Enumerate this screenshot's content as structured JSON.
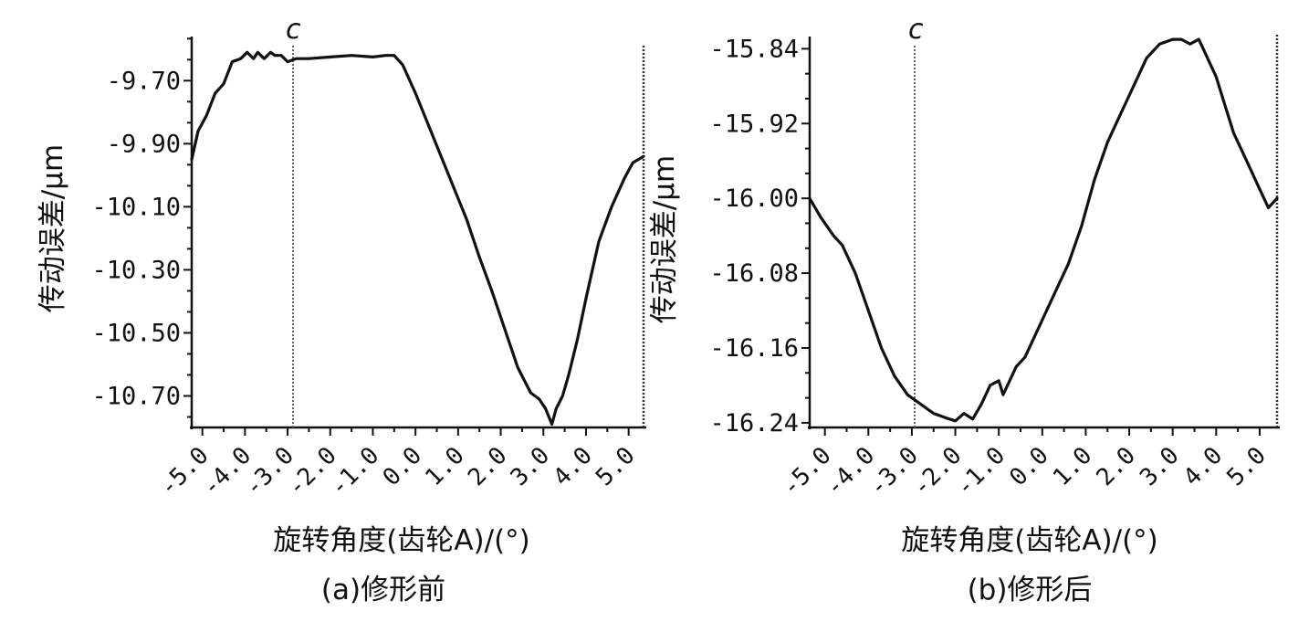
{
  "chart_data": [
    {
      "type": "line",
      "caption": "(a)修形前",
      "xlabel": "旋转角度(齿轮A)/(°)",
      "ylabel": "传动误差/μm",
      "marker_label": "c",
      "marker_x": -3.0,
      "xlim": [
        -5.25,
        5.35
      ],
      "ylim": [
        -10.8,
        -9.56
      ],
      "xticks": [
        "-5.0",
        "-4.0",
        "-3.0",
        "-2.0",
        "-1.0",
        "0.0",
        "1.0",
        "2.0",
        "3.0",
        "4.0",
        "5.0"
      ],
      "xtick_values": [
        -5,
        -4,
        -3,
        -2,
        -1,
        0,
        1,
        2,
        3,
        4,
        5
      ],
      "yticks": [
        "-9.70",
        "-9.90",
        "-10.10",
        "-10.30",
        "-10.50",
        "-10.70"
      ],
      "ytick_values": [
        -9.7,
        -9.9,
        -10.1,
        -10.3,
        -10.5,
        -10.7
      ],
      "x": [
        -5.25,
        -5.1,
        -4.9,
        -4.7,
        -4.5,
        -4.3,
        -4.1,
        -3.95,
        -3.8,
        -3.7,
        -3.55,
        -3.4,
        -3.3,
        -3.15,
        -3.0,
        -2.8,
        -2.5,
        -2.0,
        -1.5,
        -1.0,
        -0.7,
        -0.5,
        -0.3,
        0.0,
        0.3,
        0.6,
        0.9,
        1.2,
        1.5,
        1.8,
        2.1,
        2.4,
        2.7,
        2.9,
        3.05,
        3.2,
        3.3,
        3.45,
        3.6,
        3.8,
        4.0,
        4.3,
        4.6,
        4.9,
        5.1,
        5.35
      ],
      "values": [
        -9.95,
        -9.86,
        -9.81,
        -9.74,
        -9.71,
        -9.64,
        -9.63,
        -9.61,
        -9.63,
        -9.61,
        -9.63,
        -9.61,
        -9.62,
        -9.62,
        -9.64,
        -9.63,
        -9.63,
        -9.625,
        -9.62,
        -9.625,
        -9.62,
        -9.62,
        -9.65,
        -9.74,
        -9.84,
        -9.94,
        -10.04,
        -10.14,
        -10.26,
        -10.37,
        -10.49,
        -10.61,
        -10.69,
        -10.71,
        -10.74,
        -10.79,
        -10.74,
        -10.7,
        -10.63,
        -10.52,
        -10.39,
        -10.21,
        -10.1,
        -10.01,
        -9.96,
        -9.94
      ]
    },
    {
      "type": "line",
      "caption": "(b)修形后",
      "xlabel": "旋转角度(齿轮A)/(°)",
      "ylabel": "传动误差/μm",
      "marker_label": "c",
      "marker_x": -3.0,
      "xlim": [
        -5.35,
        5.4
      ],
      "ylim": [
        -16.245,
        -15.825
      ],
      "xticks": [
        "-5.0",
        "-4.0",
        "-3.0",
        "-2.0",
        "-1.0",
        "0.0",
        "1.0",
        "2.0",
        "3.0",
        "4.0",
        "5.0"
      ],
      "xtick_values": [
        -5,
        -4,
        -3,
        -2,
        -1,
        0,
        1,
        2,
        3,
        4,
        5
      ],
      "yticks": [
        "-15.84",
        "-15.92",
        "-16.00",
        "-16.08",
        "-16.16",
        "-16.24"
      ],
      "ytick_values": [
        -15.84,
        -15.92,
        -16.0,
        -16.08,
        -16.16,
        -16.24
      ],
      "x": [
        -5.35,
        -5.1,
        -4.8,
        -4.6,
        -4.3,
        -4.0,
        -3.7,
        -3.4,
        -3.1,
        -2.8,
        -2.5,
        -2.2,
        -2.0,
        -1.8,
        -1.6,
        -1.4,
        -1.2,
        -1.0,
        -0.9,
        -0.8,
        -0.7,
        -0.6,
        -0.4,
        -0.2,
        0.0,
        0.3,
        0.6,
        0.9,
        1.2,
        1.5,
        1.8,
        2.1,
        2.4,
        2.7,
        3.0,
        3.2,
        3.4,
        3.6,
        3.8,
        4.0,
        4.2,
        4.4,
        4.7,
        5.0,
        5.2,
        5.4
      ],
      "values": [
        -16.0,
        -16.02,
        -16.04,
        -16.05,
        -16.08,
        -16.12,
        -16.16,
        -16.19,
        -16.21,
        -16.22,
        -16.23,
        -16.235,
        -16.238,
        -16.23,
        -16.236,
        -16.22,
        -16.2,
        -16.195,
        -16.21,
        -16.2,
        -16.19,
        -16.18,
        -16.17,
        -16.15,
        -16.13,
        -16.1,
        -16.07,
        -16.03,
        -15.98,
        -15.94,
        -15.91,
        -15.88,
        -15.85,
        -15.835,
        -15.83,
        -15.83,
        -15.835,
        -15.83,
        -15.85,
        -15.87,
        -15.9,
        -15.93,
        -15.96,
        -15.99,
        -16.01,
        -16.0
      ]
    }
  ]
}
